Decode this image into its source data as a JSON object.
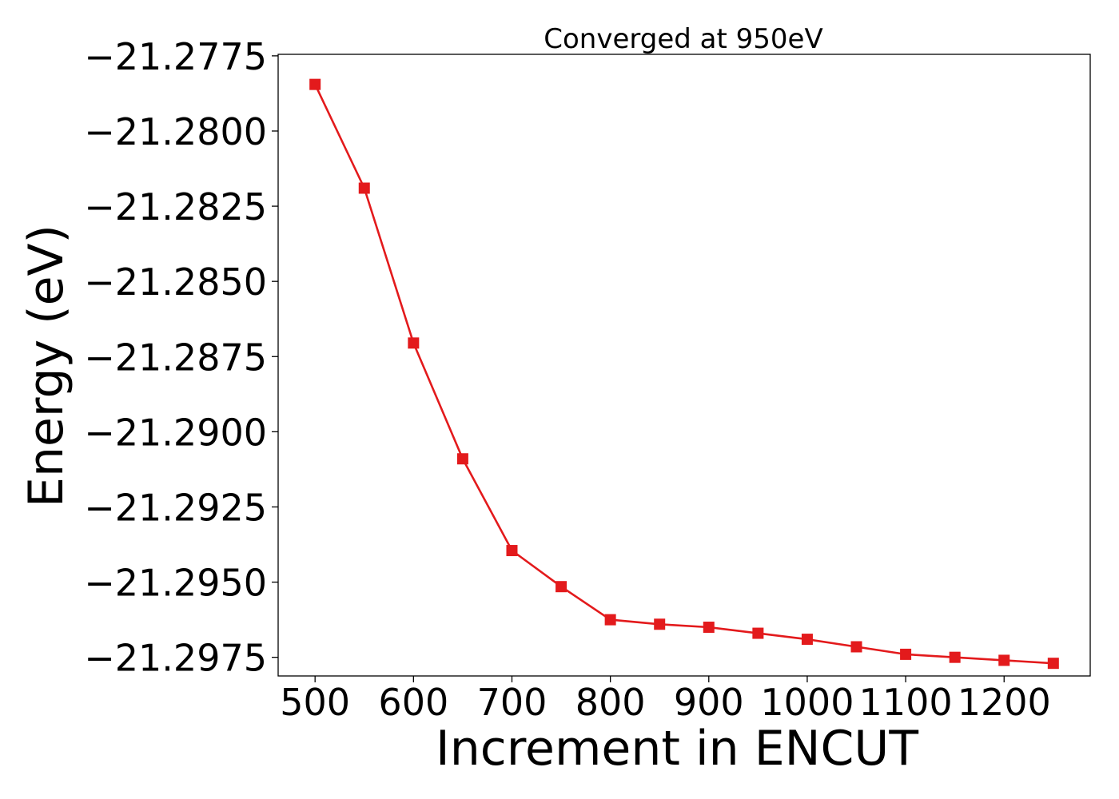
{
  "chart_data": {
    "type": "line",
    "title": "Converged at 950eV",
    "xlabel": "Increment in ENCUT",
    "ylabel": "Energy (eV)",
    "x": [
      500,
      550,
      600,
      650,
      700,
      750,
      800,
      850,
      900,
      950,
      1000,
      1050,
      1100,
      1150,
      1200,
      1250
    ],
    "series": [
      {
        "values": [
          -21.27845,
          -21.2819,
          -21.28705,
          -21.2909,
          -21.29395,
          -21.29515,
          -21.29625,
          -21.2964,
          -21.2965,
          -21.2967,
          -21.2969,
          -21.29715,
          -21.2974,
          -21.2975,
          -21.2976,
          -21.2977
        ],
        "color": "#e31a1c",
        "marker": "square"
      }
    ],
    "xlim": [
      462.5,
      1287.5
    ],
    "ylim": [
      -21.29812,
      -21.27745
    ],
    "xticks": [
      500,
      600,
      700,
      800,
      900,
      1000,
      1100,
      1200
    ],
    "xtick_labels": [
      "500",
      "600",
      "700",
      "800",
      "900",
      "1000",
      "1100",
      "1200"
    ],
    "yticks": [
      -21.2775,
      -21.28,
      -21.2825,
      -21.285,
      -21.2875,
      -21.29,
      -21.2925,
      -21.295,
      -21.2975
    ],
    "ytick_labels": [
      "−21.2775",
      "−21.2800",
      "−21.2825",
      "−21.2850",
      "−21.2875",
      "−21.2900",
      "−21.2925",
      "−21.2950",
      "−21.2975"
    ],
    "grid": false,
    "legend": "none"
  }
}
